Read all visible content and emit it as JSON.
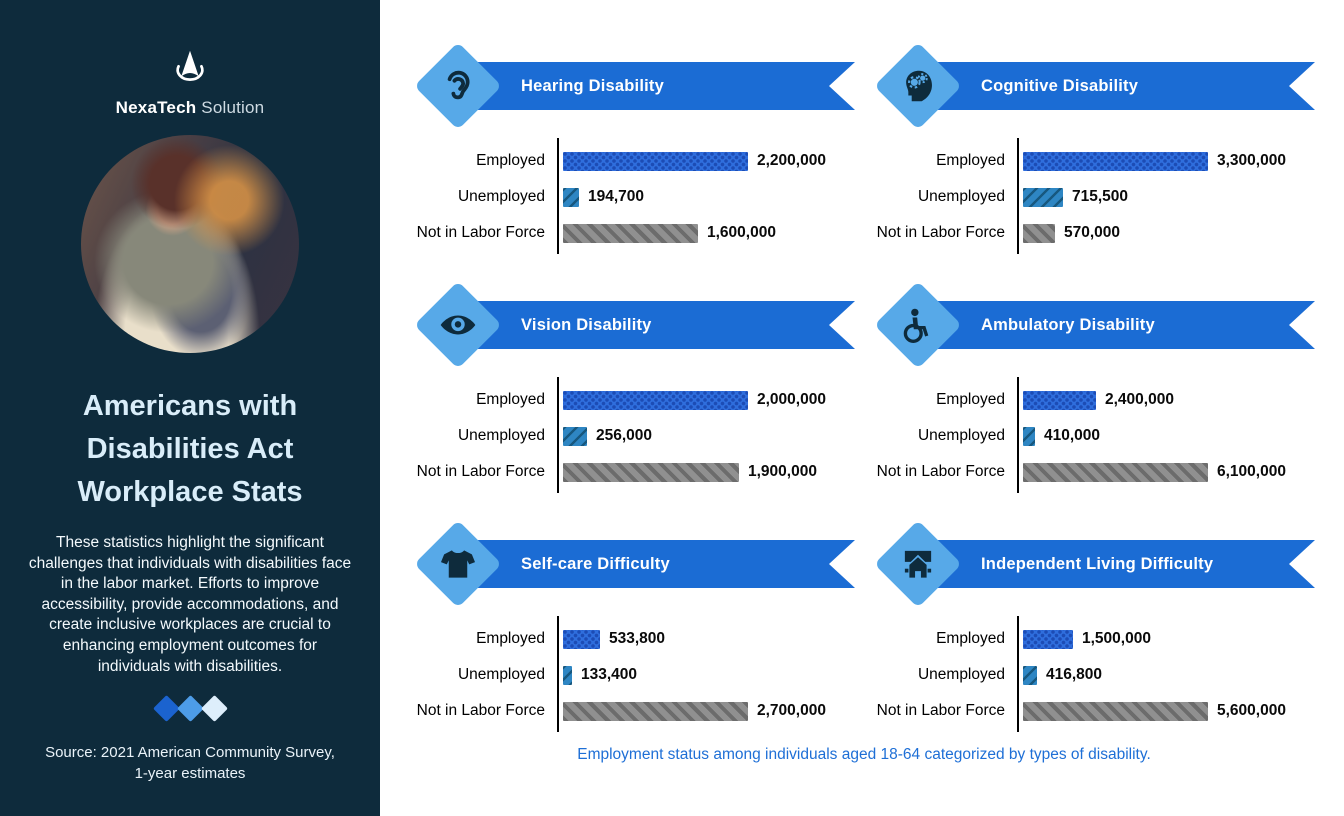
{
  "logo": {
    "brand_bold": "NexaTech",
    "brand_light": "Solution"
  },
  "sidebar": {
    "title": "Americans with Disabilities Act Workplace Stats",
    "description": "These statistics highlight the significant challenges that individuals with disabilities face in the labor market. Efforts to improve accessibility, provide accommodations, and create inclusive workplaces are crucial to enhancing employment outcomes for individuals with disabilities.",
    "source": "Source: 2021 American Community Survey, 1-year estimates",
    "diamond_colors": [
      "#1b63cf",
      "#4d9ce7",
      "#ddeefb"
    ]
  },
  "footer": {
    "caption": "Employment status among individuals aged 18-64 categorized by types of disability."
  },
  "colors": {
    "sidebar_bg": "#0e2b3c",
    "ribbon_blue": "#1b6cd4",
    "diamond_blue": "#57a9e8",
    "employed_bar": "#2f6edd",
    "unemployed_bar": "#2e86c3",
    "not_in_labor_force_bar": "#909090",
    "caption_blue": "#1e6fd6",
    "title_text": "#d9edf9"
  },
  "chart_data": [
    {
      "type": "bar",
      "title": "Hearing Disability",
      "icon": "ear-icon",
      "categories": [
        "Employed",
        "Unemployed",
        "Not in Labor Force"
      ],
      "values": [
        2200000,
        194700,
        1600000
      ],
      "value_labels": [
        "2,200,000",
        "194,700",
        "1,600,000"
      ]
    },
    {
      "type": "bar",
      "title": "Cognitive Disability",
      "icon": "head-gears-icon",
      "categories": [
        "Employed",
        "Unemployed",
        "Not in Labor Force"
      ],
      "values": [
        3300000,
        715500,
        570000
      ],
      "value_labels": [
        "3,300,000",
        "715,500",
        "570,000"
      ]
    },
    {
      "type": "bar",
      "title": "Vision Disability",
      "icon": "eye-icon",
      "categories": [
        "Employed",
        "Unemployed",
        "Not in Labor Force"
      ],
      "values": [
        2000000,
        256000,
        1900000
      ],
      "value_labels": [
        "2,000,000",
        "256,000",
        "1,900,000"
      ]
    },
    {
      "type": "bar",
      "title": "Ambulatory Disability",
      "icon": "wheelchair-icon",
      "categories": [
        "Employed",
        "Unemployed",
        "Not in Labor Force"
      ],
      "values": [
        2400000,
        410000,
        6100000
      ],
      "value_labels": [
        "2,400,000",
        "410,000",
        "6,100,000"
      ]
    },
    {
      "type": "bar",
      "title": "Self-care Difficulty",
      "icon": "tshirt-icon",
      "categories": [
        "Employed",
        "Unemployed",
        "Not in Labor Force"
      ],
      "values": [
        533800,
        133400,
        2700000
      ],
      "value_labels": [
        "533,800",
        "133,400",
        "2,700,000"
      ]
    },
    {
      "type": "bar",
      "title": "Independent Living Difficulty",
      "icon": "house-icon",
      "categories": [
        "Employed",
        "Unemployed",
        "Not in Labor Force"
      ],
      "values": [
        1500000,
        416800,
        5600000
      ],
      "value_labels": [
        "1,500,000",
        "416,800",
        "5,600,000"
      ]
    }
  ]
}
